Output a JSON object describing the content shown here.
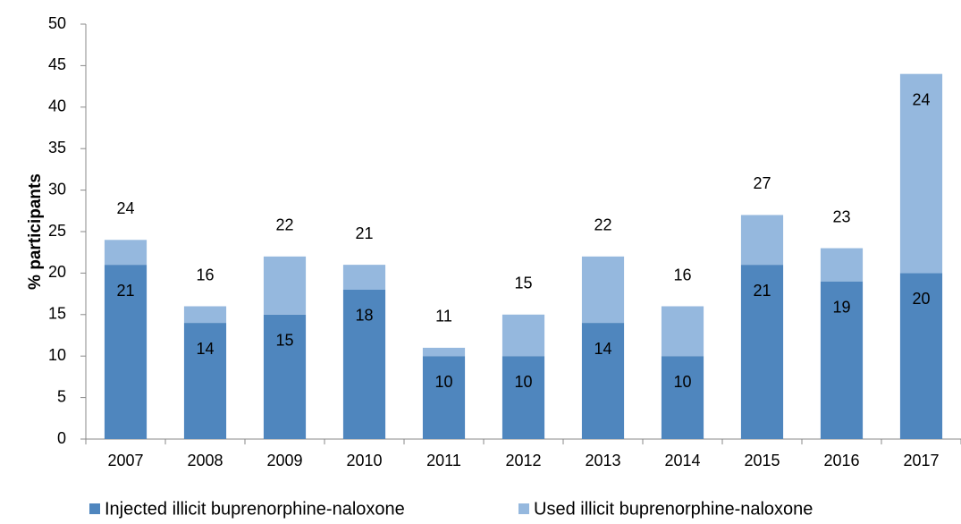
{
  "chart_data": {
    "type": "bar",
    "stacked": true,
    "y_label": "% participants",
    "categories": [
      "2007",
      "2008",
      "2009",
      "2010",
      "2011",
      "2012",
      "2013",
      "2014",
      "2015",
      "2016",
      "2017"
    ],
    "series": [
      {
        "name": "Injected illicit buprenorphine-naloxone",
        "color": "#4f86be",
        "values": [
          21,
          14,
          15,
          18,
          10,
          10,
          14,
          10,
          21,
          19,
          20
        ]
      },
      {
        "name": "Used illicit buprenorphine-naloxone",
        "color": "#95b8de",
        "values": [
          3,
          2,
          7,
          3,
          1,
          5,
          8,
          6,
          6,
          4,
          24
        ],
        "value_labels": [
          null,
          null,
          null,
          null,
          null,
          null,
          null,
          null,
          null,
          null,
          "24"
        ]
      }
    ],
    "totals": [
      24,
      16,
      22,
      21,
      11,
      15,
      22,
      16,
      27,
      23,
      null
    ],
    "ylim": [
      0,
      50
    ],
    "yticks": [
      0,
      5,
      10,
      15,
      20,
      25,
      30,
      35,
      40,
      45,
      50
    ],
    "grid": false,
    "legend": "bottom"
  }
}
